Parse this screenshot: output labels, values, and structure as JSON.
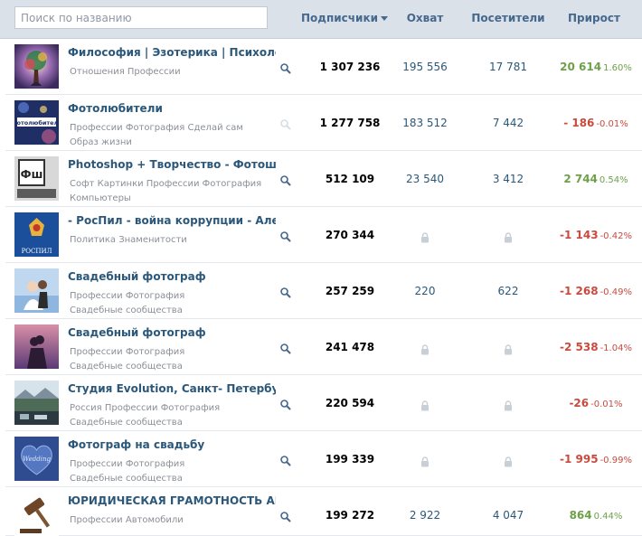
{
  "search": {
    "placeholder": "Поиск по названию",
    "value": ""
  },
  "columns": {
    "subscribers": "Подписчики",
    "reach": "Охват",
    "visitors": "Посетители",
    "growth": "Прирост"
  },
  "sort": {
    "column": "subscribers",
    "direction": "desc"
  },
  "colors": {
    "positive": "#6ea04a",
    "negative": "#c94a3e",
    "link": "#2b587a"
  },
  "rows": [
    {
      "name": "Философия | Эзотерика | Психология",
      "tags": [
        "Отношения Профессии"
      ],
      "search_icon_active": true,
      "subscribers": "1 307 236",
      "reach": "195 556",
      "visitors": "17 781",
      "reach_locked": false,
      "growth": "20 614",
      "growth_pct": "1.60%",
      "growth_sign": "pos",
      "thumb_icon": "tree-figure-icon"
    },
    {
      "name": "Фотолюбители",
      "tags": [
        "Профессии Фотография Сделай сам",
        "Образ жизни"
      ],
      "search_icon_active": false,
      "subscribers": "1 277 758",
      "reach": "183 512",
      "visitors": "7 442",
      "reach_locked": false,
      "growth": "- 186",
      "growth_pct": "-0.01%",
      "growth_sign": "neg",
      "thumb_icon": "fotolyubiteli-logo-icon",
      "thumb_label": "Фотолюбители"
    },
    {
      "name": "Photoshop + Творчество - Фотошоп",
      "tags": [
        "Софт Картинки Профессии Фотография",
        "Компьютеры"
      ],
      "search_icon_active": true,
      "subscribers": "512 109",
      "reach": "23 540",
      "visitors": "3 412",
      "reach_locked": false,
      "growth": "2 744",
      "growth_pct": "0.54%",
      "growth_sign": "pos",
      "thumb_icon": "photoshop-logo-icon",
      "thumb_label": "Фш"
    },
    {
      "name": "- РосПил - война коррупции - Алексей Навальный",
      "tags": [
        "Политика Знаменитости"
      ],
      "search_icon_active": true,
      "subscribers": "270 344",
      "reach": "",
      "visitors": "",
      "reach_locked": true,
      "growth": "-1 143",
      "growth_pct": "-0.42%",
      "growth_sign": "neg",
      "thumb_icon": "rospil-emblem-icon",
      "thumb_label": "РОСПИЛ"
    },
    {
      "name": "Свадебный фотограф",
      "tags": [
        "Профессии Фотография",
        "Свадебные сообщества"
      ],
      "search_icon_active": true,
      "subscribers": "257 259",
      "reach": "220",
      "visitors": "622",
      "reach_locked": false,
      "growth": "-1 268",
      "growth_pct": "-0.49%",
      "growth_sign": "neg",
      "thumb_icon": "wedding-couple-photo-icon"
    },
    {
      "name": "Свадебный фотограф",
      "tags": [
        "Профессии Фотография",
        "Свадебные сообщества"
      ],
      "search_icon_active": true,
      "subscribers": "241 478",
      "reach": "",
      "visitors": "",
      "reach_locked": true,
      "growth": "-2 538",
      "growth_pct": "-1.04%",
      "growth_sign": "neg",
      "thumb_icon": "couple-silhouette-photo-icon"
    },
    {
      "name": "Студия Evolution, Санкт- Петербург. Свадебная фотография",
      "tags": [
        "Россия Профессии Фотография",
        "Свадебные сообщества"
      ],
      "search_icon_active": true,
      "subscribers": "220 594",
      "reach": "",
      "visitors": "",
      "reach_locked": true,
      "growth": "-26",
      "growth_pct": "-0.01%",
      "growth_sign": "neg",
      "thumb_icon": "landscape-photo-icon"
    },
    {
      "name": "Фотограф на свадьбу",
      "tags": [
        "Профессии Фотография",
        "Свадебные сообщества"
      ],
      "search_icon_active": true,
      "subscribers": "199 339",
      "reach": "",
      "visitors": "",
      "reach_locked": true,
      "growth": "-1 995",
      "growth_pct": "-0.99%",
      "growth_sign": "neg",
      "thumb_icon": "wedding-heart-icon",
      "thumb_label": "Wedding"
    },
    {
      "name": "ЮРИДИЧЕСКАЯ ГРАМОТНОСТЬ АВТОМОБИЛИСТОВ",
      "tags": [
        "Профессии Автомобили"
      ],
      "search_icon_active": true,
      "subscribers": "199 272",
      "reach": "2 922",
      "visitors": "4 047",
      "reach_locked": false,
      "growth": "864",
      "growth_pct": "0.44%",
      "growth_sign": "pos",
      "thumb_icon": "gavel-icon"
    }
  ]
}
